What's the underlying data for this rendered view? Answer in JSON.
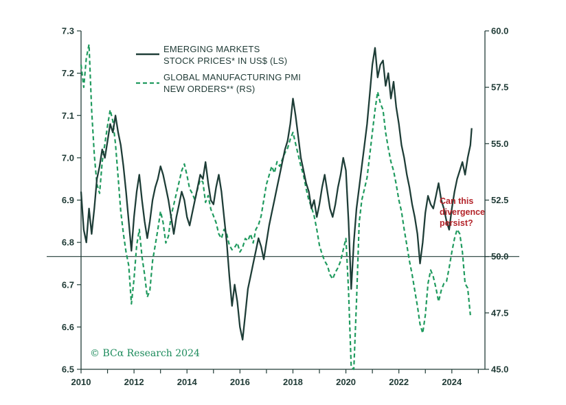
{
  "chart_data": {
    "type": "line",
    "xlim": [
      2010,
      2025.25
    ],
    "x_ticks": [
      "2010",
      "2012",
      "2014",
      "2016",
      "2018",
      "2020",
      "2022",
      "2024"
    ],
    "left_axis": {
      "ylim": [
        6.5,
        7.3
      ],
      "ticks": [
        "6.5",
        "6.6",
        "6.7",
        "6.8",
        "6.9",
        "7.0",
        "7.1",
        "7.2",
        "7.3"
      ]
    },
    "right_axis": {
      "ylim": [
        45.0,
        60.0
      ],
      "ticks": [
        "45.0",
        "47.5",
        "50.0",
        "52.5",
        "55.0",
        "57.5",
        "60.0"
      ]
    },
    "reference_line": {
      "axis": "right",
      "value": 50.0
    },
    "legend_placement": "top-left",
    "series": [
      {
        "name": "EMERGING MARKETS STOCK PRICES* IN US$ (LS)",
        "legend_lines": [
          "EMERGING MARKETS",
          "STOCK PRICES* IN US$ (LS)"
        ],
        "axis": "left",
        "style": "solid",
        "color": "#1e3d37",
        "points": [
          [
            2010.0,
            6.92
          ],
          [
            2010.1,
            6.83
          ],
          [
            2010.2,
            6.8
          ],
          [
            2010.3,
            6.88
          ],
          [
            2010.4,
            6.82
          ],
          [
            2010.5,
            6.88
          ],
          [
            2010.6,
            6.95
          ],
          [
            2010.7,
            6.98
          ],
          [
            2010.8,
            7.02
          ],
          [
            2010.9,
            7.0
          ],
          [
            2011.0,
            7.04
          ],
          [
            2011.1,
            7.08
          ],
          [
            2011.2,
            7.06
          ],
          [
            2011.3,
            7.1
          ],
          [
            2011.4,
            7.06
          ],
          [
            2011.5,
            7.03
          ],
          [
            2011.6,
            6.98
          ],
          [
            2011.7,
            6.92
          ],
          [
            2011.8,
            6.85
          ],
          [
            2011.9,
            6.78
          ],
          [
            2012.0,
            6.86
          ],
          [
            2012.1,
            6.92
          ],
          [
            2012.2,
            6.96
          ],
          [
            2012.3,
            6.9
          ],
          [
            2012.4,
            6.85
          ],
          [
            2012.5,
            6.81
          ],
          [
            2012.6,
            6.85
          ],
          [
            2012.7,
            6.9
          ],
          [
            2012.8,
            6.93
          ],
          [
            2012.9,
            6.95
          ],
          [
            2013.0,
            6.98
          ],
          [
            2013.1,
            6.96
          ],
          [
            2013.2,
            6.93
          ],
          [
            2013.3,
            6.9
          ],
          [
            2013.4,
            6.86
          ],
          [
            2013.5,
            6.82
          ],
          [
            2013.6,
            6.86
          ],
          [
            2013.7,
            6.89
          ],
          [
            2013.8,
            6.92
          ],
          [
            2013.9,
            6.9
          ],
          [
            2014.0,
            6.86
          ],
          [
            2014.1,
            6.84
          ],
          [
            2014.2,
            6.87
          ],
          [
            2014.3,
            6.9
          ],
          [
            2014.4,
            6.93
          ],
          [
            2014.5,
            6.96
          ],
          [
            2014.6,
            6.95
          ],
          [
            2014.7,
            6.99
          ],
          [
            2014.8,
            6.94
          ],
          [
            2014.9,
            6.9
          ],
          [
            2015.0,
            6.89
          ],
          [
            2015.1,
            6.93
          ],
          [
            2015.2,
            6.96
          ],
          [
            2015.3,
            6.92
          ],
          [
            2015.4,
            6.86
          ],
          [
            2015.5,
            6.8
          ],
          [
            2015.6,
            6.72
          ],
          [
            2015.7,
            6.65
          ],
          [
            2015.8,
            6.7
          ],
          [
            2015.9,
            6.66
          ],
          [
            2016.0,
            6.6
          ],
          [
            2016.1,
            6.57
          ],
          [
            2016.2,
            6.63
          ],
          [
            2016.3,
            6.69
          ],
          [
            2016.4,
            6.72
          ],
          [
            2016.5,
            6.75
          ],
          [
            2016.6,
            6.78
          ],
          [
            2016.7,
            6.81
          ],
          [
            2016.8,
            6.79
          ],
          [
            2016.9,
            6.76
          ],
          [
            2017.0,
            6.8
          ],
          [
            2017.1,
            6.84
          ],
          [
            2017.2,
            6.87
          ],
          [
            2017.3,
            6.9
          ],
          [
            2017.4,
            6.93
          ],
          [
            2017.5,
            6.96
          ],
          [
            2017.6,
            6.99
          ],
          [
            2017.7,
            7.02
          ],
          [
            2017.8,
            7.04
          ],
          [
            2017.9,
            7.08
          ],
          [
            2018.0,
            7.14
          ],
          [
            2018.1,
            7.1
          ],
          [
            2018.2,
            7.05
          ],
          [
            2018.3,
            7.0
          ],
          [
            2018.4,
            6.97
          ],
          [
            2018.5,
            6.94
          ],
          [
            2018.6,
            6.92
          ],
          [
            2018.7,
            6.88
          ],
          [
            2018.8,
            6.9
          ],
          [
            2018.9,
            6.86
          ],
          [
            2019.0,
            6.89
          ],
          [
            2019.1,
            6.93
          ],
          [
            2019.2,
            6.96
          ],
          [
            2019.3,
            6.92
          ],
          [
            2019.4,
            6.88
          ],
          [
            2019.5,
            6.86
          ],
          [
            2019.6,
            6.89
          ],
          [
            2019.7,
            6.93
          ],
          [
            2019.8,
            6.96
          ],
          [
            2019.9,
            7.0
          ],
          [
            2020.0,
            6.97
          ],
          [
            2020.1,
            6.85
          ],
          [
            2020.2,
            6.69
          ],
          [
            2020.3,
            6.8
          ],
          [
            2020.4,
            6.88
          ],
          [
            2020.5,
            6.93
          ],
          [
            2020.6,
            6.98
          ],
          [
            2020.7,
            7.03
          ],
          [
            2020.8,
            7.08
          ],
          [
            2020.9,
            7.15
          ],
          [
            2021.0,
            7.22
          ],
          [
            2021.1,
            7.26
          ],
          [
            2021.2,
            7.19
          ],
          [
            2021.3,
            7.22
          ],
          [
            2021.4,
            7.23
          ],
          [
            2021.5,
            7.17
          ],
          [
            2021.6,
            7.2
          ],
          [
            2021.7,
            7.14
          ],
          [
            2021.8,
            7.18
          ],
          [
            2021.9,
            7.12
          ],
          [
            2022.0,
            7.08
          ],
          [
            2022.1,
            7.03
          ],
          [
            2022.2,
            7.0
          ],
          [
            2022.3,
            6.96
          ],
          [
            2022.4,
            6.93
          ],
          [
            2022.5,
            6.89
          ],
          [
            2022.6,
            6.86
          ],
          [
            2022.7,
            6.82
          ],
          [
            2022.8,
            6.75
          ],
          [
            2022.9,
            6.8
          ],
          [
            2023.0,
            6.87
          ],
          [
            2023.1,
            6.91
          ],
          [
            2023.2,
            6.89
          ],
          [
            2023.3,
            6.88
          ],
          [
            2023.4,
            6.91
          ],
          [
            2023.5,
            6.94
          ],
          [
            2023.6,
            6.9
          ],
          [
            2023.7,
            6.88
          ],
          [
            2023.8,
            6.85
          ],
          [
            2023.9,
            6.83
          ],
          [
            2024.0,
            6.88
          ],
          [
            2024.1,
            6.92
          ],
          [
            2024.2,
            6.95
          ],
          [
            2024.3,
            6.97
          ],
          [
            2024.4,
            6.99
          ],
          [
            2024.5,
            6.96
          ],
          [
            2024.6,
            7.0
          ],
          [
            2024.7,
            7.03
          ],
          [
            2024.75,
            7.07
          ]
        ]
      },
      {
        "name": "GLOBAL MANUFACTURING PMI NEW ORDERS** (RS)",
        "legend_lines": [
          "GLOBAL MANUFACTURING PMI",
          "NEW ORDERS** (RS)"
        ],
        "axis": "right",
        "style": "dashed",
        "color": "#1f9a5e",
        "points": [
          [
            2010.0,
            58.5
          ],
          [
            2010.1,
            57.5
          ],
          [
            2010.2,
            58.8
          ],
          [
            2010.3,
            59.4
          ],
          [
            2010.4,
            56.5
          ],
          [
            2010.5,
            54.5
          ],
          [
            2010.6,
            53.2
          ],
          [
            2010.7,
            52.8
          ],
          [
            2010.8,
            54.2
          ],
          [
            2010.9,
            55.0
          ],
          [
            2011.0,
            55.8
          ],
          [
            2011.1,
            56.5
          ],
          [
            2011.2,
            56.0
          ],
          [
            2011.3,
            55.0
          ],
          [
            2011.4,
            53.5
          ],
          [
            2011.5,
            52.0
          ],
          [
            2011.6,
            51.0
          ],
          [
            2011.7,
            50.2
          ],
          [
            2011.8,
            49.6
          ],
          [
            2011.9,
            47.9
          ],
          [
            2012.0,
            49.0
          ],
          [
            2012.1,
            50.5
          ],
          [
            2012.2,
            51.2
          ],
          [
            2012.3,
            50.0
          ],
          [
            2012.4,
            49.2
          ],
          [
            2012.5,
            48.2
          ],
          [
            2012.6,
            48.5
          ],
          [
            2012.7,
            49.8
          ],
          [
            2012.8,
            50.5
          ],
          [
            2012.9,
            51.2
          ],
          [
            2013.0,
            52.0
          ],
          [
            2013.1,
            51.5
          ],
          [
            2013.2,
            50.6
          ],
          [
            2013.3,
            50.9
          ],
          [
            2013.4,
            51.8
          ],
          [
            2013.5,
            52.3
          ],
          [
            2013.6,
            52.8
          ],
          [
            2013.7,
            53.3
          ],
          [
            2013.8,
            53.8
          ],
          [
            2013.9,
            54.1
          ],
          [
            2014.0,
            53.6
          ],
          [
            2014.1,
            53.0
          ],
          [
            2014.2,
            52.8
          ],
          [
            2014.3,
            52.5
          ],
          [
            2014.4,
            53.0
          ],
          [
            2014.5,
            53.4
          ],
          [
            2014.6,
            53.3
          ],
          [
            2014.7,
            52.4
          ],
          [
            2014.8,
            52.7
          ],
          [
            2014.9,
            52.1
          ],
          [
            2015.0,
            51.8
          ],
          [
            2015.1,
            51.5
          ],
          [
            2015.2,
            51.0
          ],
          [
            2015.3,
            50.8
          ],
          [
            2015.4,
            51.2
          ],
          [
            2015.5,
            51.0
          ],
          [
            2015.6,
            50.5
          ],
          [
            2015.7,
            50.3
          ],
          [
            2015.8,
            50.4
          ],
          [
            2015.9,
            50.6
          ],
          [
            2016.0,
            50.2
          ],
          [
            2016.1,
            50.4
          ],
          [
            2016.2,
            50.8
          ],
          [
            2016.3,
            50.7
          ],
          [
            2016.4,
            51.0
          ],
          [
            2016.5,
            50.6
          ],
          [
            2016.6,
            51.2
          ],
          [
            2016.7,
            51.4
          ],
          [
            2016.8,
            51.8
          ],
          [
            2016.9,
            52.5
          ],
          [
            2017.0,
            53.2
          ],
          [
            2017.1,
            53.6
          ],
          [
            2017.2,
            54.0
          ],
          [
            2017.3,
            53.7
          ],
          [
            2017.4,
            54.2
          ],
          [
            2017.5,
            54.0
          ],
          [
            2017.6,
            54.3
          ],
          [
            2017.7,
            54.6
          ],
          [
            2017.8,
            54.8
          ],
          [
            2017.9,
            55.2
          ],
          [
            2018.0,
            55.5
          ],
          [
            2018.1,
            55.0
          ],
          [
            2018.2,
            54.5
          ],
          [
            2018.3,
            54.0
          ],
          [
            2018.4,
            53.6
          ],
          [
            2018.5,
            53.0
          ],
          [
            2018.6,
            52.5
          ],
          [
            2018.7,
            52.2
          ],
          [
            2018.8,
            51.8
          ],
          [
            2018.9,
            51.2
          ],
          [
            2019.0,
            50.5
          ],
          [
            2019.1,
            50.1
          ],
          [
            2019.2,
            49.8
          ],
          [
            2019.3,
            49.6
          ],
          [
            2019.4,
            49.2
          ],
          [
            2019.5,
            49.0
          ],
          [
            2019.6,
            49.3
          ],
          [
            2019.7,
            49.5
          ],
          [
            2019.8,
            49.8
          ],
          [
            2019.9,
            50.3
          ],
          [
            2020.0,
            50.8
          ],
          [
            2020.1,
            48.5
          ],
          [
            2020.2,
            45.1
          ],
          [
            2020.3,
            45.0
          ],
          [
            2020.4,
            48.0
          ],
          [
            2020.5,
            51.5
          ],
          [
            2020.6,
            52.5
          ],
          [
            2020.7,
            53.0
          ],
          [
            2020.8,
            53.5
          ],
          [
            2020.9,
            54.5
          ],
          [
            2021.0,
            55.5
          ],
          [
            2021.1,
            56.5
          ],
          [
            2021.2,
            57.3
          ],
          [
            2021.3,
            56.8
          ],
          [
            2021.4,
            56.5
          ],
          [
            2021.5,
            55.5
          ],
          [
            2021.6,
            54.8
          ],
          [
            2021.7,
            54.2
          ],
          [
            2021.8,
            53.8
          ],
          [
            2021.9,
            53.2
          ],
          [
            2022.0,
            52.5
          ],
          [
            2022.1,
            52.0
          ],
          [
            2022.2,
            51.2
          ],
          [
            2022.3,
            50.5
          ],
          [
            2022.4,
            49.8
          ],
          [
            2022.5,
            49.2
          ],
          [
            2022.6,
            48.5
          ],
          [
            2022.7,
            47.8
          ],
          [
            2022.8,
            47.0
          ],
          [
            2022.9,
            46.6
          ],
          [
            2023.0,
            47.4
          ],
          [
            2023.1,
            48.8
          ],
          [
            2023.2,
            49.4
          ],
          [
            2023.3,
            49.1
          ],
          [
            2023.4,
            48.6
          ],
          [
            2023.5,
            48.0
          ],
          [
            2023.6,
            48.5
          ],
          [
            2023.7,
            48.8
          ],
          [
            2023.8,
            48.9
          ],
          [
            2023.9,
            49.5
          ],
          [
            2024.0,
            50.2
          ],
          [
            2024.1,
            50.8
          ],
          [
            2024.2,
            51.2
          ],
          [
            2024.3,
            51.0
          ],
          [
            2024.4,
            50.2
          ],
          [
            2024.5,
            48.8
          ],
          [
            2024.6,
            48.6
          ],
          [
            2024.7,
            47.4
          ]
        ]
      }
    ],
    "annotation": {
      "lines": [
        "Can this",
        "divergence",
        "persist?"
      ],
      "color": "#b3242a"
    },
    "credit": "© BCα Research 2024",
    "grid": false
  }
}
